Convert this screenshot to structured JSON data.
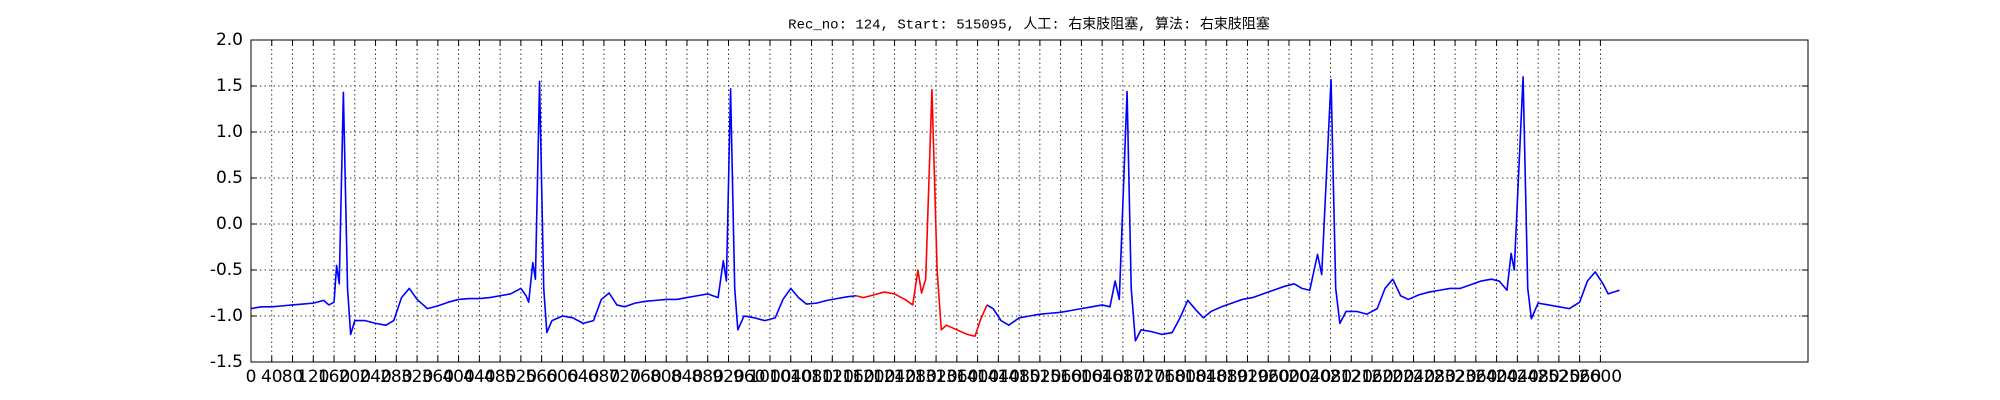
{
  "chart_data": {
    "type": "line",
    "title": "Rec_no: 124, Start: 515095, 人工: 右束肢阻塞, 算法: 右束肢阻塞",
    "xlim": [
      0,
      3000
    ],
    "ylim": [
      -1.5,
      2.0
    ],
    "xticks": [
      0,
      40,
      80,
      120,
      160,
      200,
      240,
      280,
      320,
      360,
      400,
      440,
      480,
      520,
      560,
      600,
      640,
      680,
      720,
      760,
      800,
      840,
      880,
      920,
      960,
      1000,
      1040,
      1080,
      1120,
      1160,
      1200,
      1240,
      1280,
      1320,
      1360,
      1400,
      1440,
      1480,
      1520,
      1560,
      1600,
      1640,
      1680,
      1720,
      1760,
      1800,
      1840,
      1880,
      1920,
      1960,
      2000,
      2040,
      2080,
      2120,
      2160,
      2200,
      2240,
      2280,
      2320,
      2360,
      2400,
      2440,
      2480,
      2520,
      2560,
      2600
    ],
    "yticks": [
      -1.5,
      {
        "value": -1.0,
        "label": "-1.0"
      },
      -0.5,
      {
        "value": 0.0,
        "label": "0.0"
      },
      0.5,
      {
        "value": 1.0,
        "label": "1.0"
      },
      1.5,
      {
        "value": 2.0,
        "label": "2.0"
      }
    ],
    "grid": true,
    "series": [
      {
        "color": "#0000ff",
        "x": [
          0,
          20,
          40,
          60,
          80,
          100,
          120,
          140,
          150,
          160,
          165,
          170,
          178,
          186,
          192,
          200,
          220,
          240,
          260,
          275,
          290,
          305,
          320,
          340,
          360,
          380,
          400,
          420,
          440,
          460,
          480,
          500,
          520,
          530,
          535,
          543,
          548,
          556,
          564,
          570,
          580,
          600,
          620,
          640,
          660,
          675,
          690,
          705,
          720,
          740,
          760,
          780,
          800,
          820,
          840,
          860,
          880,
          900,
          910,
          916,
          924,
          932,
          938,
          950,
          970,
          990,
          1010,
          1025,
          1040,
          1055,
          1070,
          1090,
          1110,
          1130,
          1150,
          1166
        ],
        "values": [
          -0.92,
          -0.9,
          -0.9,
          -0.89,
          -0.88,
          -0.87,
          -0.86,
          -0.83,
          -0.88,
          -0.85,
          -0.45,
          -0.65,
          1.43,
          -0.7,
          -1.2,
          -1.05,
          -1.05,
          -1.08,
          -1.1,
          -1.05,
          -0.8,
          -0.7,
          -0.82,
          -0.92,
          -0.89,
          -0.85,
          -0.82,
          -0.81,
          -0.81,
          -0.8,
          -0.78,
          -0.76,
          -0.7,
          -0.78,
          -0.85,
          -0.42,
          -0.6,
          1.55,
          -0.7,
          -1.18,
          -1.05,
          -1.0,
          -1.02,
          -1.08,
          -1.05,
          -0.82,
          -0.75,
          -0.88,
          -0.9,
          -0.86,
          -0.84,
          -0.83,
          -0.82,
          -0.82,
          -0.8,
          -0.78,
          -0.76,
          -0.8,
          -0.4,
          -0.62,
          1.47,
          -0.7,
          -1.15,
          -1.0,
          -1.02,
          -1.05,
          -1.02,
          -0.82,
          -0.7,
          -0.8,
          -0.87,
          -0.86,
          -0.83,
          -0.81,
          -0.79,
          -0.78
        ]
      },
      {
        "color": "#ff0000",
        "x": [
          1166,
          1180,
          1200,
          1220,
          1240,
          1260,
          1275,
          1285,
          1292,
          1300,
          1312,
          1322,
          1330,
          1340,
          1360,
          1380,
          1395,
          1405,
          1418
        ],
        "values": [
          -0.78,
          -0.8,
          -0.77,
          -0.74,
          -0.76,
          -0.82,
          -0.88,
          -0.5,
          -0.75,
          -0.6,
          1.46,
          -0.5,
          -1.15,
          -1.1,
          -1.15,
          -1.2,
          -1.22,
          -1.05,
          -0.88
        ]
      },
      {
        "color": "#0000ff",
        "x": [
          1418,
          1430,
          1445,
          1460,
          1480,
          1500,
          1520,
          1540,
          1560,
          1580,
          1600,
          1620,
          1640,
          1655,
          1665,
          1673,
          1688,
          1696,
          1704,
          1715,
          1735,
          1755,
          1775,
          1790,
          1805,
          1820,
          1835,
          1850,
          1870,
          1890,
          1910,
          1930,
          1950,
          1970,
          1990,
          2010,
          2025,
          2040,
          2055,
          2063,
          2081,
          2090,
          2098,
          2110,
          2130,
          2150,
          2170,
          2185,
          2200,
          2215,
          2230,
          2250,
          2270,
          2290,
          2310,
          2330,
          2350,
          2370,
          2390,
          2405,
          2420,
          2428,
          2434,
          2451,
          2460,
          2467,
          2480,
          2500,
          2520,
          2540,
          2560,
          2575,
          2590,
          2605,
          2615,
          2625,
          2637
        ],
        "values": [
          -0.88,
          -0.92,
          -1.05,
          -1.1,
          -1.02,
          -1.0,
          -0.98,
          -0.97,
          -0.96,
          -0.94,
          -0.92,
          -0.9,
          -0.88,
          -0.9,
          -0.62,
          -0.82,
          1.44,
          -0.7,
          -1.27,
          -1.15,
          -1.17,
          -1.2,
          -1.18,
          -1.02,
          -0.83,
          -0.93,
          -1.02,
          -0.95,
          -0.9,
          -0.86,
          -0.82,
          -0.8,
          -0.76,
          -0.72,
          -0.68,
          -0.65,
          -0.7,
          -0.72,
          -0.33,
          -0.55,
          1.57,
          -0.7,
          -1.08,
          -0.95,
          -0.95,
          -0.98,
          -0.92,
          -0.7,
          -0.6,
          -0.78,
          -0.82,
          -0.77,
          -0.74,
          -0.72,
          -0.7,
          -0.7,
          -0.66,
          -0.62,
          -0.6,
          -0.62,
          -0.72,
          -0.32,
          -0.5,
          1.6,
          -0.7,
          -1.03,
          -0.86,
          -0.88,
          -0.9,
          -0.92,
          -0.85,
          -0.62,
          -0.52,
          -0.65,
          -0.76,
          -0.74,
          -0.72
        ]
      }
    ]
  }
}
